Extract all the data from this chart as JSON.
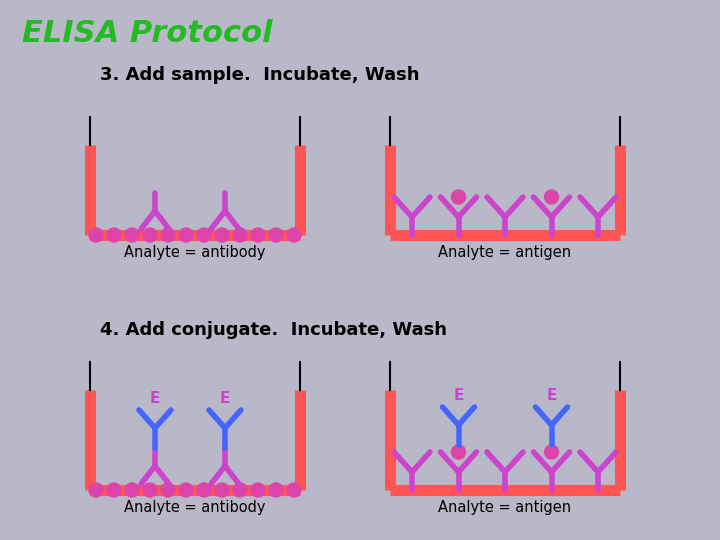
{
  "title": "ELISA Protocol",
  "title_color": "#22bb22",
  "bg_color": "#b8b8c8",
  "step3_text": "3. Add sample.  Incubate, Wash",
  "step4_text": "4. Add conjugate.  Incubate, Wash",
  "analyte_antibody": "Analyte = antibody",
  "analyte_antigen": "Analyte = antigen",
  "well_color": "#ff5555",
  "ab_primary_color": "#cc44cc",
  "ab_conjugate_color": "#4466ff",
  "bead_color": "#dd44aa",
  "enzyme_label": "E",
  "enzyme_label_color": "#cc44cc",
  "panel1_xl": 90,
  "panel1_xr": 300,
  "panel1_yb": 235,
  "panel1_yt": 145,
  "panel2_xl": 390,
  "panel2_xr": 620,
  "panel2_yb": 235,
  "panel2_yt": 145,
  "panel3_xl": 90,
  "panel3_xr": 300,
  "panel3_yb": 490,
  "panel3_yt": 390,
  "panel4_xl": 390,
  "panel4_xr": 620,
  "panel4_yb": 490,
  "panel4_yt": 390
}
